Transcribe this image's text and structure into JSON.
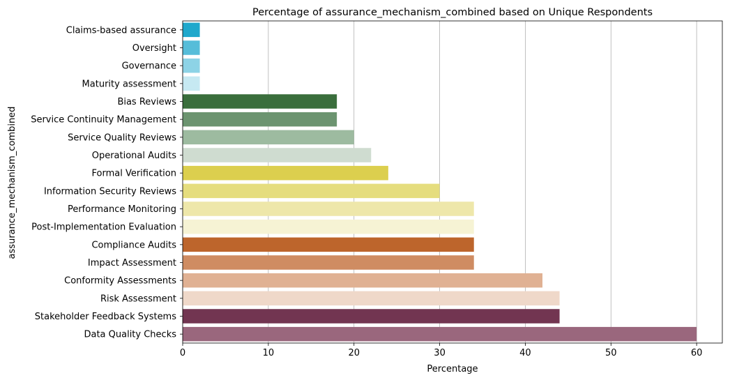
{
  "chart_data": {
    "type": "bar",
    "orientation": "horizontal",
    "title": "Percentage of assurance_mechanism_combined based on Unique Respondents",
    "xlabel": "Percentage",
    "ylabel": "assurance_mechanism_combined",
    "xlim": [
      0,
      63
    ],
    "xticks": [
      0,
      10,
      20,
      30,
      40,
      50,
      60
    ],
    "grid": "vertical",
    "categories": [
      "Claims-based assurance",
      "Oversight",
      "Governance",
      "Maturity assessment",
      "Bias Reviews",
      "Service Continuity Management",
      "Service Quality Reviews",
      "Operational Audits",
      "Formal Verification",
      "Information Security Reviews",
      "Performance Monitoring",
      "Post-Implementation Evaluation",
      "Compliance Audits",
      "Impact Assessment",
      "Conformity Assessments",
      "Risk Assessment",
      "Stakeholder Feedback Systems",
      "Data Quality Checks"
    ],
    "values": [
      2,
      2,
      2,
      2,
      18,
      18,
      20,
      22,
      24,
      30,
      34,
      34,
      34,
      34,
      42,
      44,
      44,
      60
    ],
    "colors": [
      "#1fa8cc",
      "#56bdd9",
      "#8dd3e6",
      "#c6e9f2",
      "#3a6e3c",
      "#6c9470",
      "#9dbba0",
      "#cfdcd0",
      "#dccf4e",
      "#e5dd7e",
      "#eee7aa",
      "#f6f3d4",
      "#bd652c",
      "#cf8c62",
      "#e0b193",
      "#efd8c9",
      "#723551",
      "#9a677d"
    ]
  }
}
